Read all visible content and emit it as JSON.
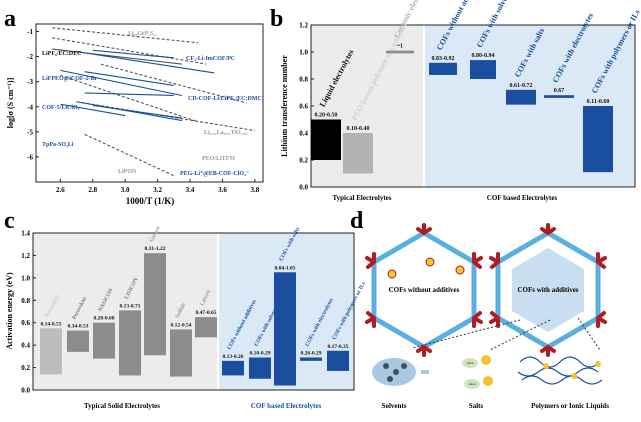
{
  "panel_letters": [
    "a",
    "b",
    "c",
    "d"
  ],
  "chart_data": [
    {
      "panel": "a",
      "type": "line",
      "xlabel": "1000/T (1/K)",
      "ylabel": "log[σ (S cm⁻¹)]",
      "xlim": [
        2.45,
        3.85
      ],
      "ylim": [
        -7.0,
        -0.7
      ],
      "xticks": [
        "2.6",
        "2.8",
        "3.0",
        "3.2",
        "3.4",
        "3.6",
        "3.8"
      ],
      "xtick_values": [
        2.6,
        2.8,
        3.0,
        3.2,
        3.4,
        3.6,
        3.8
      ],
      "yticks": [
        "-1",
        "-2",
        "-3",
        "-4",
        "-5",
        "-6"
      ],
      "ytick_values": [
        -1,
        -2,
        -3,
        -4,
        -5,
        -6
      ],
      "series": [
        {
          "style": "dashed",
          "color": "#555555",
          "x": [
            2.55,
            3.45
          ],
          "y": [
            -0.85,
            -1.45
          ]
        },
        {
          "style": "dashed",
          "color": "#555555",
          "x": [
            2.55,
            3.5
          ],
          "y": [
            -1.25,
            -2.3
          ]
        },
        {
          "style": "dashed",
          "color": "#555555",
          "x": [
            2.85,
            3.75
          ],
          "y": [
            -2.3,
            -3.85
          ]
        },
        {
          "style": "dashed",
          "color": "#555555",
          "x": [
            2.6,
            3.45
          ],
          "y": [
            -2.75,
            -4.6
          ]
        },
        {
          "style": "dashed",
          "color": "#555555",
          "x": [
            2.7,
            3.8
          ],
          "y": [
            -3.8,
            -4.95
          ]
        },
        {
          "style": "dashed",
          "color": "#555555",
          "x": [
            2.75,
            3.3
          ],
          "y": [
            -5.1,
            -6.75
          ]
        },
        {
          "style": "solid",
          "color": "#444444",
          "x": [
            2.55,
            3.35
          ],
          "y": [
            -1.7,
            -2.3
          ]
        },
        {
          "style": "solid",
          "color": "#1a4fa0",
          "x": [
            2.8,
            3.3
          ],
          "y": [
            -1.75,
            -2.05
          ]
        },
        {
          "style": "solid",
          "color": "#1a4fa0",
          "x": [
            2.7,
            3.55
          ],
          "y": [
            -1.8,
            -2.65
          ]
        },
        {
          "style": "solid",
          "color": "#1a4fa0",
          "x": [
            2.75,
            3.3
          ],
          "y": [
            -2.6,
            -3.15
          ]
        },
        {
          "style": "solid",
          "color": "#1a4fa0",
          "x": [
            2.6,
            3.35
          ],
          "y": [
            -2.55,
            -3.55
          ]
        },
        {
          "style": "solid",
          "color": "#1a4fa0",
          "x": [
            2.75,
            3.3
          ],
          "y": [
            -3.45,
            -3.55
          ]
        },
        {
          "style": "solid",
          "color": "#1a4fa0",
          "x": [
            2.7,
            3.35
          ],
          "y": [
            -3.8,
            -4.55
          ]
        },
        {
          "style": "solid",
          "color": "#1a4fa0",
          "x": [
            2.8,
            3.35
          ],
          "y": [
            -3.95,
            -4.45
          ]
        },
        {
          "style": "solid",
          "color": "#1a4fa0",
          "x": [
            2.6,
            3.0
          ],
          "y": [
            -3.9,
            -4.35
          ]
        }
      ],
      "annotations": [
        {
          "text": "Li₂₀GeP₂S₁₂",
          "color": "#999999"
        },
        {
          "text": "LiPF₆/EC:DEC",
          "color": "#111111"
        },
        {
          "text": "CF₃-Li-ImCOF/PC",
          "color": "#1a4fa0"
        },
        {
          "text": "LiFPEO@iCOF-2-Br",
          "color": "#1a4fa0"
        },
        {
          "text": "CD-COF-Li/LiPF₆/EC:DMC",
          "color": "#1a4fa0"
        },
        {
          "text": "COF-5/LiClO₄",
          "color": "#1a4fa0"
        },
        {
          "text": "Li₀.₃₄La₀.₅₁TiO₂.₉₄",
          "color": "#999999"
        },
        {
          "text": "TpPa-SO₃Li",
          "color": "#1a4fa0"
        },
        {
          "text": "PEO/LiTFSI",
          "color": "#999999"
        },
        {
          "text": "LiPON",
          "color": "#999999"
        },
        {
          "text": "PEG-Li⁺@EB-COF-ClO₄⁻",
          "color": "#1a4fa0"
        }
      ]
    },
    {
      "panel": "b",
      "type": "bar",
      "ylabel": "Lithium transference number",
      "ylim": [
        0.0,
        1.2
      ],
      "yticks": [
        "0.0",
        "0.2",
        "0.4",
        "0.6",
        "0.8",
        "1.0",
        "1.2"
      ],
      "ytick_values": [
        0,
        0.2,
        0.4,
        0.6,
        0.8,
        1.0,
        1.2
      ],
      "group_labels": [
        "Typical Electrolytes",
        "COF based Electrolytes"
      ],
      "bars": [
        {
          "label": "Liquid electrolytes",
          "range_label": "0.20-0.50",
          "low": 0.2,
          "high": 0.5,
          "color": "#000000",
          "label_color": "#111111"
        },
        {
          "label": "PEO based polymer electrolytes",
          "range_label": "0.10-0.40",
          "low": 0.1,
          "high": 0.4,
          "color": "#b3b3b3",
          "label_color": "#d0d0d0"
        },
        {
          "label": "Ceramic electrolytes",
          "range_label": "~1",
          "low": 0.99,
          "high": 1.01,
          "color": "#8c8c8c",
          "label_color": "#b8b8b8"
        },
        {
          "label": "COFs without additives",
          "range_label": "0.83-0.92",
          "low": 0.83,
          "high": 0.92,
          "color": "#1a4fa0",
          "label_color": "#1a4fa0"
        },
        {
          "label": "COFs with solvents",
          "range_label": "0.80-0.94",
          "low": 0.8,
          "high": 0.94,
          "color": "#1a4fa0",
          "label_color": "#1a4fa0"
        },
        {
          "label": "COFs with salts",
          "range_label": "0.61-0.72",
          "low": 0.61,
          "high": 0.72,
          "color": "#1a4fa0",
          "label_color": "#1a4fa0"
        },
        {
          "label": "COFs with electrolytes",
          "range_label": "0.67",
          "low": 0.66,
          "high": 0.68,
          "color": "#1a4fa0",
          "label_color": "#1a4fa0"
        },
        {
          "label": "COFs with polymers or ILs",
          "range_label": "0.11-0.60",
          "low": 0.11,
          "high": 0.6,
          "color": "#1a4fa0",
          "label_color": "#1a4fa0"
        }
      ]
    },
    {
      "panel": "c",
      "type": "bar",
      "ylabel": "Activation energy (eV)",
      "ylim": [
        0.0,
        1.4
      ],
      "yticks": [
        "0.0",
        "0.2",
        "0.4",
        "0.6",
        "0.8",
        "1.0",
        "1.2",
        "1.4"
      ],
      "ytick_values": [
        0,
        0.2,
        0.4,
        0.6,
        0.8,
        1.0,
        1.2,
        1.4
      ],
      "group_labels": [
        "Typical Solid Electrolytes",
        "COF based Electrolytes"
      ],
      "bars": [
        {
          "label": "Perovskite",
          "range_label": "0.14-0.55",
          "low": 0.14,
          "high": 0.55,
          "color": "#bdbdbd",
          "label_color": "#cccccc"
        },
        {
          "label": "Perovskite",
          "range_label": "0.34-0.53",
          "low": 0.34,
          "high": 0.53,
          "color": "#8c8c8c",
          "label_color": "#777777"
        },
        {
          "label": "NASICON",
          "range_label": "0.28-0.60",
          "low": 0.28,
          "high": 0.6,
          "color": "#8c8c8c",
          "label_color": "#777777"
        },
        {
          "label": "LISICON",
          "range_label": "0.13-0.71",
          "low": 0.13,
          "high": 0.71,
          "color": "#8c8c8c",
          "label_color": "#777777"
        },
        {
          "label": "Garnet",
          "range_label": "0.31-1.22",
          "low": 0.31,
          "high": 1.22,
          "color": "#8c8c8c",
          "label_color": "#9a9a9a"
        },
        {
          "label": "Sulfide",
          "range_label": "0.12-0.54",
          "low": 0.12,
          "high": 0.54,
          "color": "#8c8c8c",
          "label_color": "#9a9a9a"
        },
        {
          "label": "LiPON",
          "range_label": "0.47-0.65",
          "low": 0.47,
          "high": 0.65,
          "color": "#8c8c8c",
          "label_color": "#9a9a9a"
        },
        {
          "label": "COFs without additives",
          "range_label": "0.13-0.26",
          "low": 0.13,
          "high": 0.26,
          "color": "#1a4fa0",
          "label_color": "#1a4fa0"
        },
        {
          "label": "COFs with solvents",
          "range_label": "0.10-0.29",
          "low": 0.1,
          "high": 0.29,
          "color": "#1a4fa0",
          "label_color": "#1a4fa0"
        },
        {
          "label": "COFs with salts",
          "range_label": "0.04-1.05",
          "low": 0.04,
          "high": 1.05,
          "color": "#1a4fa0",
          "label_color": "#1a4fa0"
        },
        {
          "label": "COFs with electrolytes",
          "range_label": "0.26-0.29",
          "low": 0.26,
          "high": 0.29,
          "color": "#1a4fa0",
          "label_color": "#1a4fa0"
        },
        {
          "label": "COFs with polymers or ILs",
          "range_label": "0.17-0.35",
          "low": 0.17,
          "high": 0.35,
          "color": "#1a4fa0",
          "label_color": "#1a4fa0"
        }
      ]
    }
  ],
  "diagram_d": {
    "left_hex_label": "COFs without additives",
    "right_hex_label": "COFs with additives",
    "bottom_labels": [
      "Solvents",
      "Salts",
      "Polymers or Ionic Liquids"
    ],
    "anion_label": "anion"
  },
  "colors": {
    "cof_blue": "#1a4fa0",
    "panel_bg": "#dbe9f6",
    "typical_bg": "#ececec",
    "frame_red": "#b01c24",
    "frame_lightblue": "#5aaee0",
    "salt_yellow": "#f4c430",
    "solvent_blue": "#a9c9e3"
  }
}
